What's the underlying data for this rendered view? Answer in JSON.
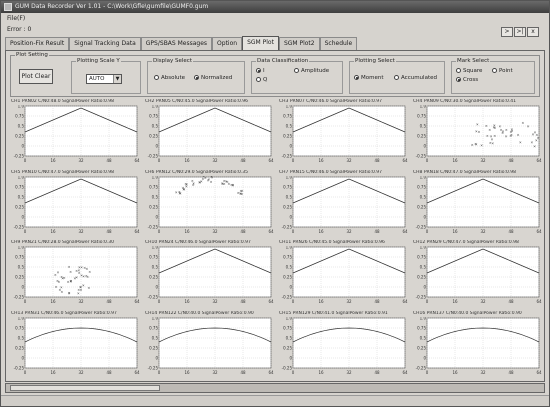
{
  "window": {
    "title": "GUM Data Recorder Ver 1.01 - C:\\Work\\Gfle\\gumfile\\GUMF0.gum"
  },
  "menu": {
    "file_label": "File(F)"
  },
  "status": {
    "error_label": "Error : 0"
  },
  "nav": {
    "buttons": [
      ">",
      ">|",
      "x"
    ]
  },
  "tabs": [
    {
      "label": "Position-Fix Result",
      "active": false
    },
    {
      "label": "Signal Tracking Data",
      "active": false
    },
    {
      "label": "GPS/SBAS Messages",
      "active": false
    },
    {
      "label": "Option",
      "active": false
    },
    {
      "label": "SGM Plot",
      "active": true
    },
    {
      "label": "SGM Plot2",
      "active": false
    },
    {
      "label": "Schedule",
      "active": false
    }
  ],
  "plot_setting": {
    "title": "Plot Setting",
    "plot_clear_label": "Plot Clear",
    "plotting_scale": {
      "label": "Plotting Scale Y",
      "value": "AUTO"
    },
    "display_select": {
      "label": "Display Select",
      "options": [
        {
          "label": "Absolute",
          "selected": false
        },
        {
          "label": "Normalized",
          "selected": true
        }
      ]
    },
    "data_classification": {
      "label": "Data Classification",
      "options": [
        {
          "label": "I",
          "selected": true
        },
        {
          "label": "Q",
          "selected": false
        },
        {
          "label": "Amplitude",
          "selected": false
        }
      ]
    },
    "plotting_select": {
      "label": "Plotting Select",
      "options": [
        {
          "label": "Moment",
          "selected": true
        },
        {
          "label": "Accumulated",
          "selected": false
        }
      ]
    },
    "mark_select": {
      "label": "Mark Select",
      "options": [
        {
          "label": "Square",
          "selected": false
        },
        {
          "label": "Point",
          "selected": false
        },
        {
          "label": "Cross",
          "selected": true
        }
      ]
    }
  },
  "plots": [
    {
      "title": "CH1 PRN02 C/N0:48.0 SignalPower Ratio:0.98",
      "y_ticks": [
        "1.0",
        "0.75",
        "0.5",
        "0.25",
        "0",
        "-0.25"
      ],
      "x_ticks": [
        "0",
        "16",
        "32",
        "48",
        "64"
      ],
      "kind": "triangle"
    },
    {
      "title": "CH2 PRN05 C/N0:45.0 SignalPower Ratio:0.96",
      "y_ticks": [
        "1.0",
        "0.75",
        "0.5",
        "0.25",
        "0",
        "-0.25"
      ],
      "x_ticks": [
        "0",
        "16",
        "32",
        "48",
        "64"
      ],
      "kind": "triangle"
    },
    {
      "title": "CH3 PRN07 C/N0:46.0 SignalPower Ratio:0.97",
      "y_ticks": [
        "1.0",
        "0.75",
        "0.5",
        "0.25",
        "0",
        "-0.25"
      ],
      "x_ticks": [
        "0",
        "16",
        "32",
        "48",
        "64"
      ],
      "kind": "triangle"
    },
    {
      "title": "CH4 PRN09 C/N0:30.0 SignalPower Ratio:0.41",
      "y_ticks": [
        "1.0",
        "0.75",
        "0.5",
        "0.25",
        "0",
        "-0.25"
      ],
      "x_ticks": [
        "0",
        "16",
        "32",
        "48",
        "64"
      ],
      "kind": "scatter-right"
    },
    {
      "title": "CH5 PRN10 C/N0:47.0 SignalPower Ratio:0.98",
      "y_ticks": [
        "1.0",
        "0.75",
        "0.5",
        "0.25",
        "0",
        "-0.25"
      ],
      "x_ticks": [
        "0",
        "16",
        "32",
        "48",
        "64"
      ],
      "kind": "triangle"
    },
    {
      "title": "CH6 PRN12 C/N0:29.0 SignalPower Ratio:0.35",
      "y_ticks": [
        "1.0",
        "0.75",
        "0.5",
        "0.25",
        "0",
        "-0.25"
      ],
      "x_ticks": [
        "0",
        "16",
        "32",
        "48",
        "64"
      ],
      "kind": "scatter-arc"
    },
    {
      "title": "CH7 PRN15 C/N0:46.0 SignalPower Ratio:0.97",
      "y_ticks": [
        "1.0",
        "0.75",
        "0.5",
        "0.25",
        "0",
        "-0.25"
      ],
      "x_ticks": [
        "0",
        "16",
        "32",
        "48",
        "64"
      ],
      "kind": "triangle"
    },
    {
      "title": "CH8 PRN18 C/N0:47.0 SignalPower Ratio:0.98",
      "y_ticks": [
        "1.0",
        "0.75",
        "0.5",
        "0.25",
        "0",
        "-0.25"
      ],
      "x_ticks": [
        "0",
        "16",
        "32",
        "48",
        "64"
      ],
      "kind": "triangle"
    },
    {
      "title": "CH9 PRN21 C/N0:28.0 SignalPower Ratio:0.30",
      "y_ticks": [
        "1.0",
        "0.75",
        "0.5",
        "0.25",
        "0",
        "-0.25"
      ],
      "x_ticks": [
        "0",
        "16",
        "32",
        "48",
        "64"
      ],
      "kind": "scatter-mid"
    },
    {
      "title": "CH10 PRN24 C/N0:46.0 SignalPower Ratio:0.97",
      "y_ticks": [
        "1.0",
        "0.75",
        "0.5",
        "0.25",
        "0",
        "-0.25"
      ],
      "x_ticks": [
        "0",
        "16",
        "32",
        "48",
        "64"
      ],
      "kind": "triangle"
    },
    {
      "title": "CH11 PRN26 C/N0:45.0 SignalPower Ratio:0.96",
      "y_ticks": [
        "1.0",
        "0.75",
        "0.5",
        "0.25",
        "0",
        "-0.25"
      ],
      "x_ticks": [
        "0",
        "16",
        "32",
        "48",
        "64"
      ],
      "kind": "triangle"
    },
    {
      "title": "CH12 PRN29 C/N0:47.0 SignalPower Ratio:0.98",
      "y_ticks": [
        "1.0",
        "0.75",
        "0.5",
        "0.25",
        "0",
        "-0.25"
      ],
      "x_ticks": [
        "0",
        "16",
        "32",
        "48",
        "64"
      ],
      "kind": "triangle"
    },
    {
      "title": "CH13 PRN31 C/N0:46.0 SignalPower Ratio:0.97",
      "y_ticks": [
        "1.0",
        "0.75",
        "0.5",
        "0.25",
        "0",
        "-0.25"
      ],
      "x_ticks": [
        "0",
        "16",
        "32",
        "48",
        "64"
      ],
      "kind": "arc"
    },
    {
      "title": "CH14 PRN122 C/N0:40.0 SignalPower Ratio:0.90",
      "y_ticks": [
        "1.0",
        "0.75",
        "0.5",
        "0.25",
        "0",
        "-0.25"
      ],
      "x_ticks": [
        "0",
        "16",
        "32",
        "48",
        "64"
      ],
      "kind": "arc"
    },
    {
      "title": "CH15 PRN129 C/N0:41.0 SignalPower Ratio:0.91",
      "y_ticks": [
        "1.0",
        "0.75",
        "0.5",
        "0.25",
        "0",
        "-0.25"
      ],
      "x_ticks": [
        "0",
        "16",
        "32",
        "48",
        "64"
      ],
      "kind": "arc"
    },
    {
      "title": "CH16 PRN137 C/N0:40.0 SignalPower Ratio:0.90",
      "y_ticks": [
        "1.0",
        "0.75",
        "0.5",
        "0.25",
        "0",
        "-0.25"
      ],
      "x_ticks": [
        "0",
        "16",
        "32",
        "48",
        "64"
      ],
      "kind": "arc"
    }
  ]
}
